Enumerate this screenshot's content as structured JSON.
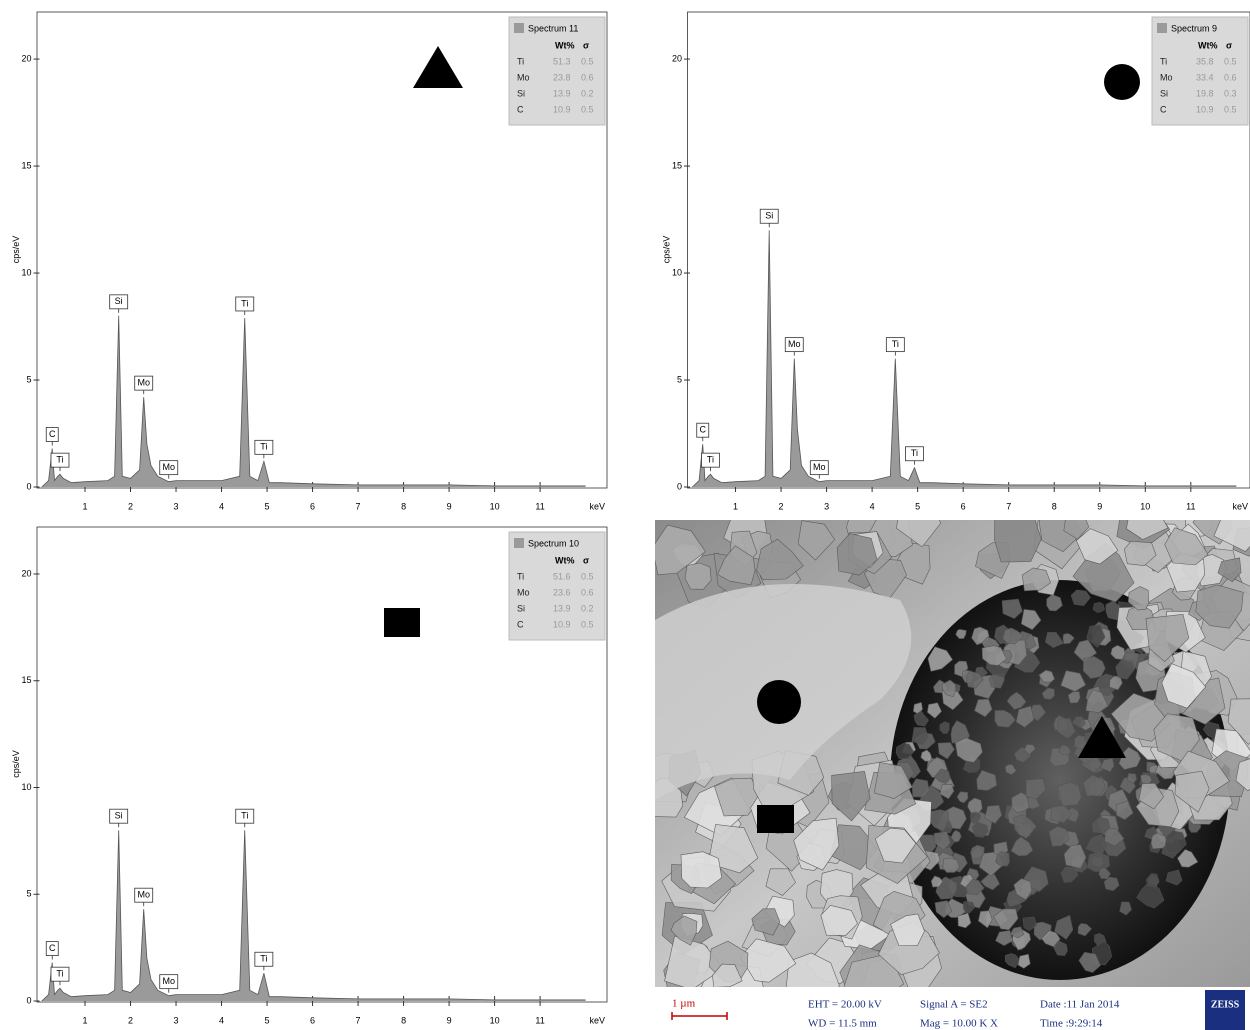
{
  "chart_data": [
    {
      "type": "area",
      "x_label": "keV",
      "y_label": "cps/eV",
      "x": [
        0.05,
        0.2,
        0.28,
        0.33,
        0.4,
        0.45,
        0.52,
        0.7,
        1.0,
        1.5,
        1.65,
        1.74,
        1.82,
        2.0,
        2.2,
        2.29,
        2.36,
        2.45,
        2.6,
        2.84,
        3.0,
        3.5,
        4.0,
        4.4,
        4.51,
        4.62,
        4.8,
        4.93,
        5.05,
        5.3,
        6,
        7,
        8,
        9,
        10,
        11,
        12
      ],
      "series": [
        {
          "name": "Spectrum 11",
          "color": "#9a9a9a",
          "values": [
            0,
            0.3,
            1.8,
            0.3,
            0.5,
            0.6,
            0.4,
            0.2,
            0.25,
            0.3,
            0.5,
            8.0,
            0.5,
            0.4,
            0.8,
            4.2,
            2.0,
            1.0,
            0.5,
            0.25,
            0.3,
            0.3,
            0.3,
            0.5,
            7.9,
            0.5,
            0.3,
            1.2,
            0.2,
            0.2,
            0.15,
            0.1,
            0.1,
            0.1,
            0.05,
            0.05,
            0.05
          ]
        }
      ],
      "peak_labels": [
        {
          "text": "C",
          "x": 0.28,
          "y": 1.8
        },
        {
          "text": "Ti",
          "x": 0.45,
          "y": 0.6
        },
        {
          "text": "Si",
          "x": 1.74,
          "y": 8.0
        },
        {
          "text": "Mo",
          "x": 2.29,
          "y": 4.2
        },
        {
          "text": "Mo",
          "x": 2.84,
          "y": 0.25
        },
        {
          "text": "Ti",
          "x": 4.51,
          "y": 7.9
        },
        {
          "text": "Ti",
          "x": 4.93,
          "y": 1.2
        }
      ],
      "table": {
        "header": [
          "Wt%",
          "σ"
        ],
        "rows": [
          [
            "Ti",
            51.3,
            0.5
          ],
          [
            "Mo",
            23.8,
            0.6
          ],
          [
            "Si",
            13.9,
            0.2
          ],
          [
            "C",
            10.9,
            0.5
          ]
        ]
      },
      "marker": "triangle",
      "xlim": [
        0,
        12.47
      ],
      "ylim": [
        0,
        22.2
      ],
      "xticks": [
        1,
        2,
        3,
        4,
        5,
        6,
        7,
        8,
        9,
        10,
        11
      ],
      "yticks": [
        0,
        5,
        10,
        15,
        20
      ]
    },
    {
      "type": "area",
      "x_label": "keV",
      "y_label": "cps/eV",
      "x": [
        0.05,
        0.2,
        0.28,
        0.33,
        0.4,
        0.45,
        0.52,
        0.7,
        1.0,
        1.5,
        1.65,
        1.74,
        1.82,
        2.0,
        2.2,
        2.29,
        2.36,
        2.45,
        2.6,
        2.84,
        3.0,
        3.5,
        4.0,
        4.4,
        4.51,
        4.62,
        4.8,
        4.93,
        5.05,
        5.3,
        6,
        7,
        8,
        9,
        10,
        11,
        12
      ],
      "series": [
        {
          "name": "Spectrum 9",
          "color": "#9a9a9a",
          "values": [
            0,
            0.3,
            2.0,
            0.3,
            0.5,
            0.6,
            0.4,
            0.2,
            0.25,
            0.3,
            0.5,
            12.0,
            0.5,
            0.4,
            0.8,
            6.0,
            2.7,
            1.0,
            0.5,
            0.25,
            0.3,
            0.3,
            0.3,
            0.5,
            6.0,
            0.5,
            0.3,
            0.9,
            0.2,
            0.2,
            0.15,
            0.1,
            0.1,
            0.1,
            0.05,
            0.05,
            0.05
          ]
        }
      ],
      "peak_labels": [
        {
          "text": "C",
          "x": 0.28,
          "y": 2.0
        },
        {
          "text": "Ti",
          "x": 0.45,
          "y": 0.6
        },
        {
          "text": "Si",
          "x": 1.74,
          "y": 12.0
        },
        {
          "text": "Mo",
          "x": 2.29,
          "y": 6.0
        },
        {
          "text": "Mo",
          "x": 2.84,
          "y": 0.25
        },
        {
          "text": "Ti",
          "x": 4.51,
          "y": 6.0
        },
        {
          "text": "Ti",
          "x": 4.93,
          "y": 0.9
        }
      ],
      "table": {
        "header": [
          "Wt%",
          "σ"
        ],
        "rows": [
          [
            "Ti",
            35.8,
            0.5
          ],
          [
            "Mo",
            33.4,
            0.6
          ],
          [
            "Si",
            19.8,
            0.3
          ],
          [
            "C",
            10.9,
            0.5
          ]
        ]
      },
      "marker": "circle",
      "xlim": [
        0,
        12.3
      ],
      "ylim": [
        0,
        22.2
      ],
      "xticks": [
        1,
        2,
        3,
        4,
        5,
        6,
        7,
        8,
        9,
        10,
        11
      ],
      "yticks": [
        0,
        5,
        10,
        15,
        20
      ]
    },
    {
      "type": "area",
      "x_label": "keV",
      "y_label": "cps/eV",
      "x": [
        0.05,
        0.2,
        0.28,
        0.33,
        0.4,
        0.45,
        0.52,
        0.7,
        1.0,
        1.5,
        1.65,
        1.74,
        1.82,
        2.0,
        2.2,
        2.29,
        2.36,
        2.45,
        2.6,
        2.84,
        3.0,
        3.5,
        4.0,
        4.4,
        4.51,
        4.62,
        4.8,
        4.93,
        5.05,
        5.3,
        6,
        7,
        8,
        9,
        10,
        11,
        12
      ],
      "series": [
        {
          "name": "Spectrum 10",
          "color": "#9a9a9a",
          "values": [
            0,
            0.3,
            1.8,
            0.3,
            0.5,
            0.6,
            0.4,
            0.2,
            0.25,
            0.3,
            0.5,
            8.0,
            0.5,
            0.4,
            0.8,
            4.3,
            2.0,
            1.0,
            0.5,
            0.25,
            0.3,
            0.3,
            0.3,
            0.5,
            8.0,
            0.5,
            0.3,
            1.3,
            0.2,
            0.2,
            0.15,
            0.1,
            0.1,
            0.1,
            0.05,
            0.05,
            0.05
          ]
        }
      ],
      "peak_labels": [
        {
          "text": "C",
          "x": 0.28,
          "y": 1.8
        },
        {
          "text": "Ti",
          "x": 0.45,
          "y": 0.6
        },
        {
          "text": "Si",
          "x": 1.74,
          "y": 8.0
        },
        {
          "text": "Mo",
          "x": 2.29,
          "y": 4.3
        },
        {
          "text": "Mo",
          "x": 2.84,
          "y": 0.25
        },
        {
          "text": "Ti",
          "x": 4.51,
          "y": 8.0
        },
        {
          "text": "Ti",
          "x": 4.93,
          "y": 1.3
        }
      ],
      "table": {
        "header": [
          "Wt%",
          "σ"
        ],
        "rows": [
          [
            "Ti",
            51.6,
            0.5
          ],
          [
            "Mo",
            23.6,
            0.6
          ],
          [
            "Si",
            13.9,
            0.2
          ],
          [
            "C",
            10.9,
            0.5
          ]
        ]
      },
      "marker": "square",
      "xlim": [
        0,
        12.47
      ],
      "ylim": [
        0,
        22.2
      ],
      "xticks": [
        1,
        2,
        3,
        4,
        5,
        6,
        7,
        8,
        9,
        10,
        11
      ],
      "yticks": [
        0,
        5,
        10,
        15,
        20
      ]
    }
  ],
  "sem": {
    "scale": "1 µm",
    "eht": "EHT = 20.00 kV",
    "wd": "WD = 11.5 mm",
    "signal": "Signal A = SE2",
    "mag": "Mag =  10.00 K X",
    "date": "Date :11 Jan 2014",
    "time": "Time :9:29:14",
    "logo": "ZEISS"
  }
}
